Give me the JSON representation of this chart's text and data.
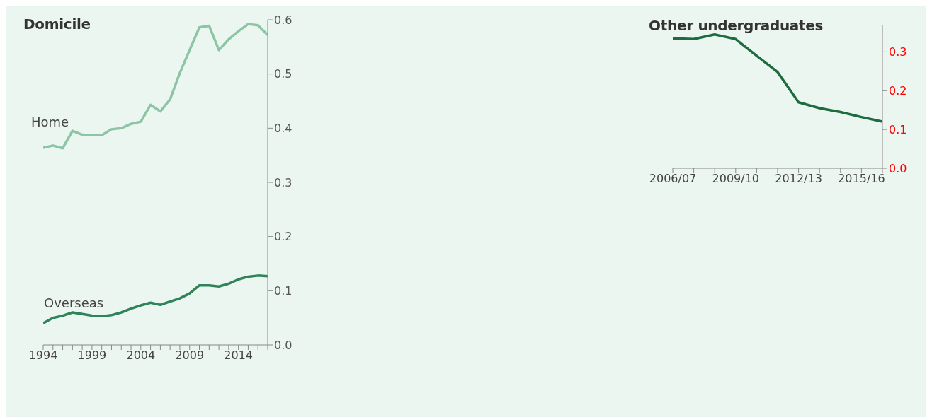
{
  "chart_data": [
    {
      "type": "line",
      "title": "Domicile",
      "x": [
        1994,
        1995,
        1996,
        1997,
        1998,
        1999,
        2000,
        2001,
        2002,
        2003,
        2004,
        2005,
        2006,
        2007,
        2008,
        2009,
        2010,
        2011,
        2012,
        2013,
        2014,
        2015,
        2016,
        2017
      ],
      "series": [
        {
          "name": "Home",
          "color": "#8cc5a4",
          "values": [
            0.364,
            0.368,
            0.363,
            0.395,
            0.388,
            0.387,
            0.387,
            0.398,
            0.4,
            0.408,
            0.412,
            0.443,
            0.431,
            0.453,
            0.502,
            0.544,
            0.586,
            0.589,
            0.544,
            0.564,
            0.579,
            0.592,
            0.59,
            0.572
          ]
        },
        {
          "name": "Overseas",
          "color": "#2e8458",
          "values": [
            0.04,
            0.05,
            0.054,
            0.06,
            0.057,
            0.054,
            0.053,
            0.055,
            0.06,
            0.067,
            0.073,
            0.078,
            0.074,
            0.08,
            0.086,
            0.095,
            0.11,
            0.11,
            0.108,
            0.113,
            0.121,
            0.126,
            0.128,
            0.127
          ]
        }
      ],
      "xlim": [
        1994,
        2017
      ],
      "xticks": [
        1994,
        {
          "value": 1995,
          "label": null
        },
        {
          "value": 1996,
          "label": null
        },
        {
          "value": 1997,
          "label": null
        },
        {
          "value": 1998,
          "label": null
        },
        1999,
        {
          "value": 2000,
          "label": null
        },
        {
          "value": 2001,
          "label": null
        },
        {
          "value": 2002,
          "label": null
        },
        {
          "value": 2003,
          "label": null
        },
        2004,
        {
          "value": 2005,
          "label": null
        },
        {
          "value": 2006,
          "label": null
        },
        {
          "value": 2007,
          "label": null
        },
        {
          "value": 2008,
          "label": null
        },
        2009,
        {
          "value": 2010,
          "label": null
        },
        {
          "value": 2011,
          "label": null
        },
        {
          "value": 2012,
          "label": null
        },
        {
          "value": 2013,
          "label": null
        },
        2014,
        {
          "value": 2015,
          "label": null
        },
        {
          "value": 2016,
          "label": null
        },
        {
          "value": 2017,
          "label": null
        }
      ],
      "ylim": [
        0,
        0.6
      ],
      "yticks": [
        {
          "value": 0,
          "label": "0.0"
        },
        0.1,
        0.2,
        0.3,
        0.4,
        0.5,
        0.6
      ],
      "grid": false,
      "legend": false,
      "marker": "none",
      "line_style": "solid"
    },
    {
      "type": "line",
      "title": "Other undergraduates",
      "categories": [
        "2006/07",
        null,
        null,
        "2009/10",
        null,
        null,
        "2012/13",
        null,
        null,
        "2015/16",
        null
      ],
      "series": [
        {
          "color": "#1e6b40",
          "values": [
            0.335,
            0.333,
            0.345,
            0.333,
            0.29,
            0.248,
            0.17,
            0.155,
            0.145,
            0.132,
            0.12
          ]
        }
      ],
      "ylim": [
        0,
        0.37
      ],
      "yticks": [
        {
          "value": 0,
          "label": "0.0"
        },
        0.1,
        0.2,
        0.3
      ],
      "grid": false,
      "legend": false,
      "marker": "none",
      "line_style": "solid"
    }
  ]
}
